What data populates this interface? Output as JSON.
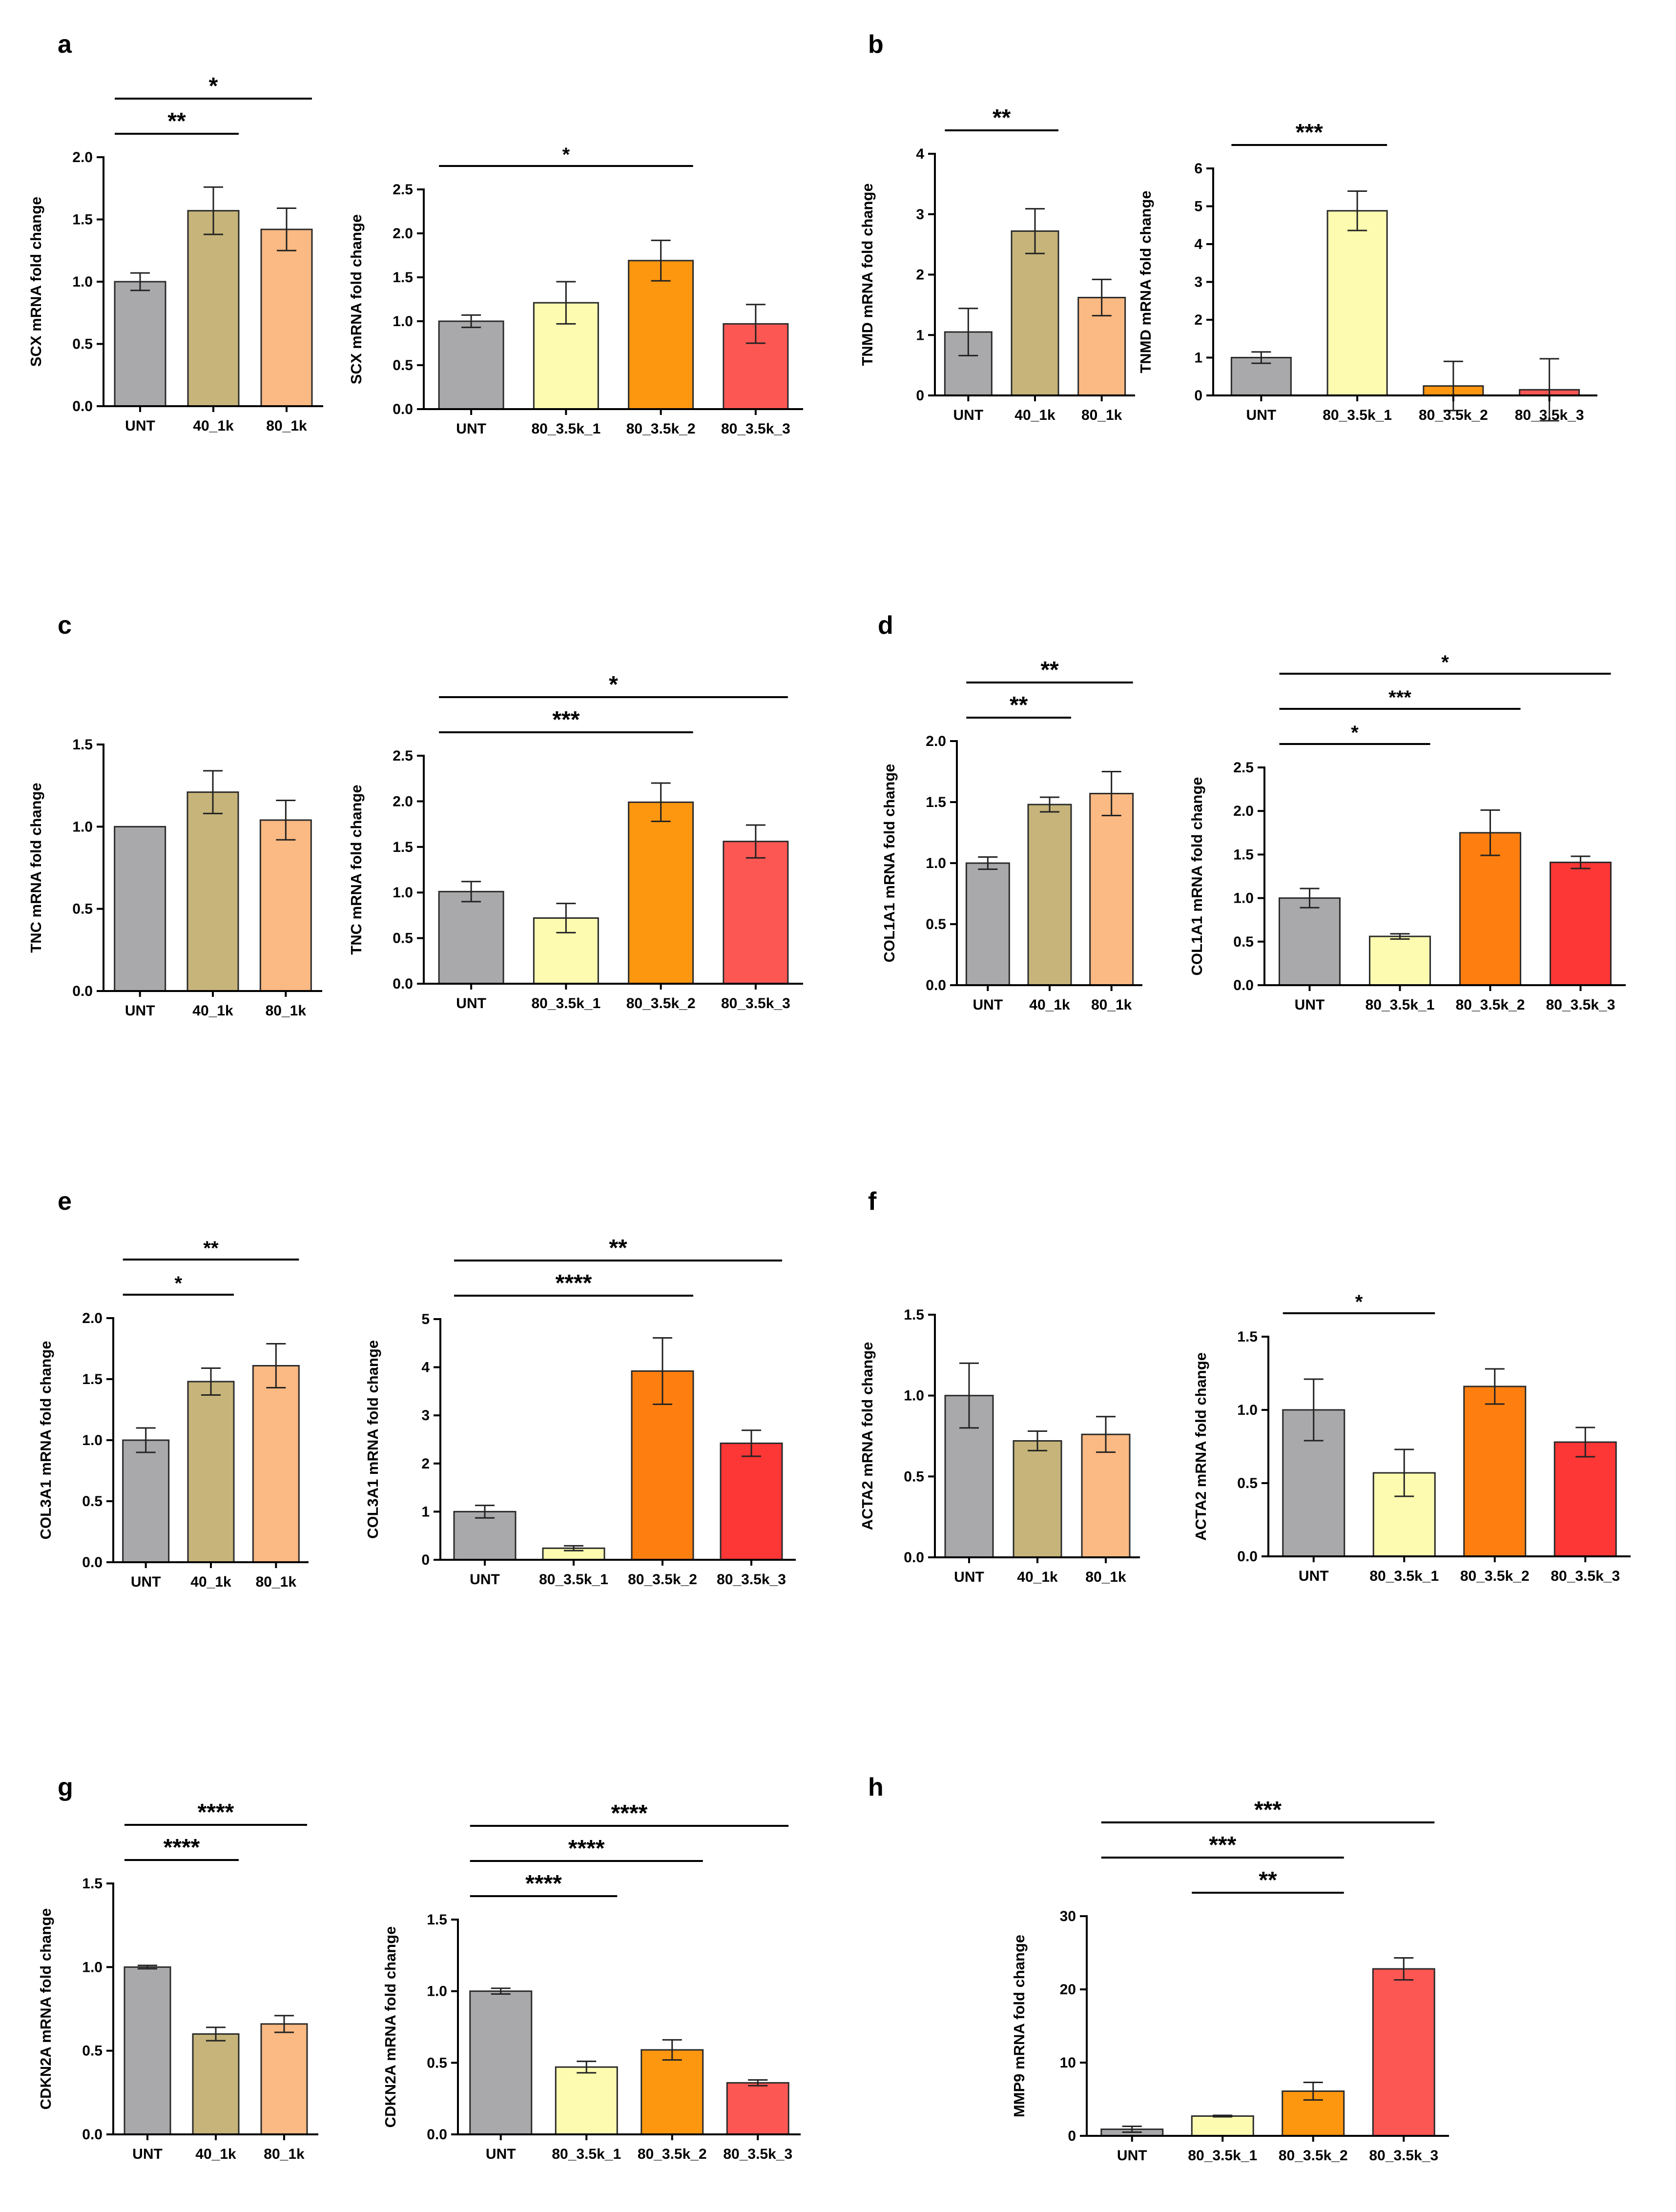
{
  "figure": {
    "description_labels": [
      "a",
      "b",
      "c",
      "d",
      "e",
      "f",
      "g",
      "h"
    ]
  },
  "chart_data": [
    {
      "id": "a1",
      "panel": "a",
      "type": "bar",
      "ylabel": "SCX mRNA fold change",
      "ylim": [
        0,
        2.0
      ],
      "yticks": [
        "0.0",
        "0.5",
        "1.0",
        "1.5",
        "2.0"
      ],
      "categories": [
        "UNT",
        "40_1k",
        "80_1k"
      ],
      "values": [
        1.0,
        1.57,
        1.42
      ],
      "errors": [
        0.07,
        0.19,
        0.17
      ],
      "colors": [
        "#a9a9ab",
        "#c6b47a",
        "#fbb983"
      ],
      "sig": [
        {
          "from": 0,
          "to": 1,
          "label": "**"
        },
        {
          "from": 0,
          "to": 2,
          "label": "*"
        }
      ]
    },
    {
      "id": "a2",
      "panel": "a",
      "type": "bar",
      "ylabel": "SCX mRNA fold change",
      "ylim": [
        0,
        2.5
      ],
      "yticks": [
        "0.0",
        "0.5",
        "1.0",
        "1.5",
        "2.0",
        "2.5"
      ],
      "categories": [
        "UNT",
        "80_3.5k_1",
        "80_3.5k_2",
        "80_3.5k_3"
      ],
      "values": [
        1.0,
        1.21,
        1.69,
        0.97
      ],
      "errors": [
        0.07,
        0.24,
        0.23,
        0.22
      ],
      "colors": [
        "#a9a9ab",
        "#fdfbb0",
        "#fe9710",
        "#fd5754"
      ],
      "sig": [
        {
          "from": 0,
          "to": 2,
          "label": "*"
        }
      ]
    },
    {
      "id": "b1",
      "panel": "b",
      "type": "bar",
      "ylabel": "TNMD mRNA fold change",
      "ylim": [
        0,
        4
      ],
      "yticks": [
        "0",
        "1",
        "2",
        "3",
        "4"
      ],
      "categories": [
        "UNT",
        "40_1k",
        "80_1k"
      ],
      "values": [
        1.05,
        2.72,
        1.62
      ],
      "errors": [
        0.39,
        0.37,
        0.3
      ],
      "colors": [
        "#a9a9ab",
        "#c6b47a",
        "#fbb983"
      ],
      "sig": [
        {
          "from": 0,
          "to": 1,
          "label": "**"
        }
      ]
    },
    {
      "id": "b2",
      "panel": "b",
      "type": "bar",
      "ylabel": "TNMD mRNA fold change",
      "ylim": [
        0,
        6
      ],
      "yticks": [
        "0",
        "1",
        "2",
        "3",
        "4",
        "5",
        "6"
      ],
      "categories": [
        "UNT",
        "80_3.5k_1",
        "80_3.5k_2",
        "80_3.5k_3"
      ],
      "values": [
        1.0,
        4.88,
        0.25,
        0.15
      ],
      "errors": [
        0.15,
        0.52,
        0.65,
        0.82
      ],
      "colors": [
        "#a9a9ab",
        "#fdfbb0",
        "#fe9710",
        "#fd5754"
      ],
      "sig": [
        {
          "from": 0,
          "to": 1,
          "label": "***"
        }
      ]
    },
    {
      "id": "c1",
      "panel": "c",
      "type": "bar",
      "ylabel": "TNC mRNA fold change",
      "ylim": [
        0,
        1.5
      ],
      "yticks": [
        "0.0",
        "0.5",
        "1.0",
        "1.5"
      ],
      "categories": [
        "UNT",
        "40_1k",
        "80_1k"
      ],
      "values": [
        1.0,
        1.21,
        1.04
      ],
      "errors": [
        0.0,
        0.13,
        0.12
      ],
      "colors": [
        "#a9a9ab",
        "#c6b47a",
        "#fbb983"
      ],
      "sig": []
    },
    {
      "id": "c2",
      "panel": "c",
      "type": "bar",
      "ylabel": "TNC mRNA fold change",
      "ylim": [
        0,
        2.5
      ],
      "yticks": [
        "0.0",
        "0.5",
        "1.0",
        "1.5",
        "2.0",
        "2.5"
      ],
      "categories": [
        "UNT",
        "80_3.5k_1",
        "80_3.5k_2",
        "80_3.5k_3"
      ],
      "values": [
        1.01,
        0.72,
        1.99,
        1.56
      ],
      "errors": [
        0.11,
        0.16,
        0.21,
        0.18
      ],
      "colors": [
        "#a9a9ab",
        "#fdfbb0",
        "#fe9710",
        "#fd5754"
      ],
      "sig": [
        {
          "from": 0,
          "to": 2,
          "label": "***"
        },
        {
          "from": 0,
          "to": 3,
          "label": "*"
        }
      ]
    },
    {
      "id": "d1",
      "panel": "d",
      "type": "bar",
      "ylabel": "COL1A1 mRNA fold change",
      "ylim": [
        0,
        2.0
      ],
      "yticks": [
        "0.0",
        "0.5",
        "1.0",
        "1.5",
        "2.0"
      ],
      "categories": [
        "UNT",
        "40_1k",
        "80_1k"
      ],
      "values": [
        1.0,
        1.48,
        1.57
      ],
      "errors": [
        0.05,
        0.06,
        0.18
      ],
      "colors": [
        "#a9a9ab",
        "#c6b47a",
        "#fbb983"
      ],
      "sig": [
        {
          "from": 0,
          "to": 1,
          "label": "**"
        },
        {
          "from": 0,
          "to": 2,
          "label": "**"
        }
      ]
    },
    {
      "id": "d2",
      "panel": "d",
      "type": "bar",
      "ylabel": "COL1A1 mRNA fold change",
      "ylim": [
        0,
        2.5
      ],
      "yticks": [
        "0.0",
        "0.5",
        "1.0",
        "1.5",
        "2.0",
        "2.5"
      ],
      "categories": [
        "UNT",
        "80_3.5k_1",
        "80_3.5k_2",
        "80_3.5k_3"
      ],
      "values": [
        1.0,
        0.56,
        1.75,
        1.41
      ],
      "errors": [
        0.11,
        0.03,
        0.26,
        0.07
      ],
      "colors": [
        "#a9a9ab",
        "#fdfbb0",
        "#fe7f10",
        "#fd3636"
      ],
      "sig": [
        {
          "from": 0,
          "to": 1,
          "label": "*"
        },
        {
          "from": 0,
          "to": 2,
          "label": "***"
        },
        {
          "from": 0,
          "to": 3,
          "label": "*"
        }
      ]
    },
    {
      "id": "e1",
      "panel": "e",
      "type": "bar",
      "ylabel": "COL3A1 mRNA fold change",
      "ylim": [
        0,
        2.0
      ],
      "yticks": [
        "0.0",
        "0.5",
        "1.0",
        "1.5",
        "2.0"
      ],
      "categories": [
        "UNT",
        "40_1k",
        "80_1k"
      ],
      "values": [
        1.0,
        1.48,
        1.61
      ],
      "errors": [
        0.1,
        0.11,
        0.18
      ],
      "colors": [
        "#a9a9ab",
        "#c6b47a",
        "#fbb983"
      ],
      "sig": [
        {
          "from": 0,
          "to": 1,
          "label": "*"
        },
        {
          "from": 0,
          "to": 2,
          "label": "**"
        }
      ]
    },
    {
      "id": "e2",
      "panel": "e",
      "type": "bar",
      "ylabel": "COL3A1 mRNA fold change",
      "ylim": [
        0,
        5
      ],
      "yticks": [
        "0",
        "1",
        "2",
        "3",
        "4",
        "5"
      ],
      "categories": [
        "UNT",
        "80_3.5k_1",
        "80_3.5k_2",
        "80_3.5k_3"
      ],
      "values": [
        1.0,
        0.24,
        3.92,
        2.42
      ],
      "errors": [
        0.13,
        0.05,
        0.69,
        0.27
      ],
      "colors": [
        "#a9a9ab",
        "#fdfbb0",
        "#fe7f10",
        "#fd3636"
      ],
      "sig": [
        {
          "from": 0,
          "to": 2,
          "label": "****"
        },
        {
          "from": 0,
          "to": 3,
          "label": "**"
        }
      ]
    },
    {
      "id": "f1",
      "panel": "f",
      "type": "bar",
      "ylabel": "ACTA2 mRNA fold change",
      "ylim": [
        0,
        1.5
      ],
      "yticks": [
        "0.0",
        "0.5",
        "1.0",
        "1.5"
      ],
      "categories": [
        "UNT",
        "40_1k",
        "80_1k"
      ],
      "values": [
        1.0,
        0.72,
        0.76
      ],
      "errors": [
        0.2,
        0.06,
        0.11
      ],
      "colors": [
        "#a9a9ab",
        "#c6b47a",
        "#fbb983"
      ],
      "sig": []
    },
    {
      "id": "f2",
      "panel": "f",
      "type": "bar",
      "ylabel": "ACTA2 mRNA fold change",
      "ylim": [
        0,
        1.5
      ],
      "yticks": [
        "0.0",
        "0.5",
        "1.0",
        "1.5"
      ],
      "categories": [
        "UNT",
        "80_3.5k_1",
        "80_3.5k_2",
        "80_3.5k_3"
      ],
      "values": [
        1.0,
        0.57,
        1.16,
        0.78
      ],
      "errors": [
        0.21,
        0.16,
        0.12,
        0.1
      ],
      "colors": [
        "#a9a9ab",
        "#fdfbb0",
        "#fe7f10",
        "#fd3636"
      ],
      "sig": [
        {
          "from": 0,
          "to": 1,
          "label": "*"
        }
      ]
    },
    {
      "id": "g1",
      "panel": "g",
      "type": "bar",
      "ylabel": "CDKN2A mRNA fold change",
      "ylim": [
        0,
        1.5
      ],
      "yticks": [
        "0.0",
        "0.5",
        "1.0",
        "1.5"
      ],
      "categories": [
        "UNT",
        "40_1k",
        "80_1k"
      ],
      "values": [
        1.0,
        0.6,
        0.66
      ],
      "errors": [
        0.01,
        0.04,
        0.05
      ],
      "colors": [
        "#a9a9ab",
        "#c6b47a",
        "#fbb983"
      ],
      "sig": [
        {
          "from": 0,
          "to": 1,
          "label": "****"
        },
        {
          "from": 0,
          "to": 2,
          "label": "****"
        }
      ]
    },
    {
      "id": "g2",
      "panel": "g",
      "type": "bar",
      "ylabel": "CDKN2A mRNA fold change",
      "ylim": [
        0,
        1.5
      ],
      "yticks": [
        "0.0",
        "0.5",
        "1.0",
        "1.5"
      ],
      "categories": [
        "UNT",
        "80_3.5k_1",
        "80_3.5k_2",
        "80_3.5k_3"
      ],
      "values": [
        1.0,
        0.47,
        0.59,
        0.36
      ],
      "errors": [
        0.02,
        0.04,
        0.07,
        0.02
      ],
      "colors": [
        "#a9a9ab",
        "#fdfbb0",
        "#fe9710",
        "#fd5754"
      ],
      "sig": [
        {
          "from": 0,
          "to": 1,
          "label": "****"
        },
        {
          "from": 0,
          "to": 2,
          "label": "****"
        },
        {
          "from": 0,
          "to": 3,
          "label": "****"
        }
      ]
    },
    {
      "id": "h1",
      "panel": "h",
      "type": "bar",
      "ylabel": "MMP9 mRNA fold change",
      "ylim": [
        0,
        30
      ],
      "yticks": [
        "0",
        "10",
        "20",
        "30"
      ],
      "categories": [
        "UNT",
        "80_3.5k_1",
        "80_3.5k_2",
        "80_3.5k_3"
      ],
      "values": [
        0.9,
        2.7,
        6.1,
        22.8
      ],
      "errors": [
        0.4,
        0.1,
        1.2,
        1.5
      ],
      "colors": [
        "#a9a9ab",
        "#fdfbb0",
        "#fe9710",
        "#fd5754"
      ],
      "sig": [
        {
          "from": 1,
          "to": 2,
          "label": "**"
        },
        {
          "from": 0,
          "to": 2,
          "label": "***"
        },
        {
          "from": 0,
          "to": 3,
          "label": "***"
        }
      ]
    }
  ]
}
